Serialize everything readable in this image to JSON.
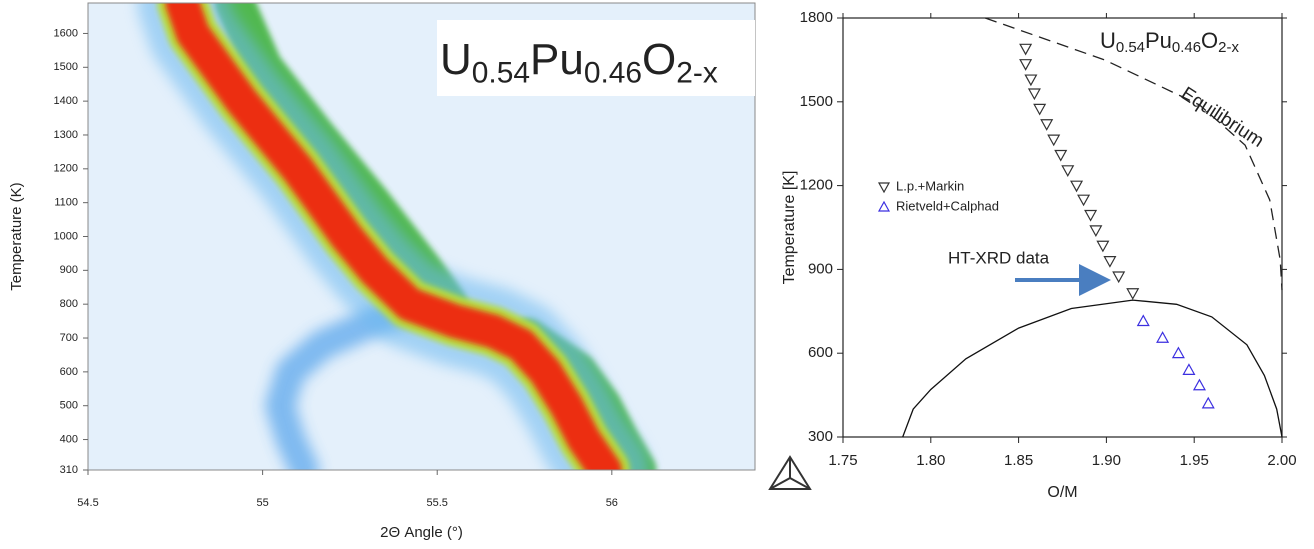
{
  "chart_data": [
    {
      "type": "heatmap",
      "title": [
        "U",
        "0.54",
        "Pu",
        "0.46",
        "O",
        "2-x"
      ],
      "xlabel": "2Θ Angle (°)",
      "ylabel": "Temperature (K)",
      "xlim": [
        54.5,
        56.41
      ],
      "ylim": [
        310,
        1690
      ],
      "xticks": [
        54.5,
        55,
        55.5,
        56
      ],
      "yticks": [
        310,
        400,
        500,
        600,
        700,
        800,
        900,
        1000,
        1100,
        1200,
        1300,
        1400,
        1500,
        1600
      ],
      "background": "#e4f0fb",
      "glow_colors": [
        "#6db9f0",
        "#b9dc3c"
      ],
      "series": [
        {
          "color": "#3a95e8",
          "x": [
            55.45,
            55.3,
            55.17,
            55.08,
            55.05,
            55.08,
            55.12
          ],
          "values": [
            800,
            740,
            680,
            600,
            500,
            400,
            310
          ]
        },
        {
          "color": "#43b33c",
          "x": [
            54.92,
            55.0,
            55.15,
            55.31,
            55.46,
            55.53,
            null,
            55.76,
            55.9,
            55.97,
            56.02,
            56.07
          ],
          "values": [
            1690,
            1500,
            1300,
            1100,
            900,
            800,
            null,
            700,
            600,
            500,
            400,
            310
          ]
        },
        {
          "color": "#f21d0c",
          "x": [
            54.77,
            54.8,
            54.87,
            54.94,
            55.02,
            55.1,
            55.17,
            55.24,
            55.32,
            55.42,
            55.55,
            55.66,
            55.74,
            55.81,
            55.87,
            55.92,
            55.98
          ],
          "values": [
            1690,
            1600,
            1500,
            1400,
            1300,
            1200,
            1100,
            1000,
            900,
            800,
            750,
            720,
            680,
            600,
            500,
            400,
            310
          ]
        }
      ]
    },
    {
      "type": "scatter",
      "title": [
        "U",
        "0.54",
        "Pu",
        "0.46",
        "O",
        "2-x"
      ],
      "xlabel": "O/M",
      "ylabel": "Temperature [K]",
      "xlim": [
        1.75,
        2.0
      ],
      "ylim": [
        300,
        1800
      ],
      "xticks": [
        1.75,
        {
          "value": 1.8,
          "label": "1.80"
        },
        1.85,
        {
          "value": 1.9,
          "label": "1.90"
        },
        1.95,
        {
          "value": 2,
          "label": "2.00"
        }
      ],
      "yticks": [
        300,
        600,
        900,
        1200,
        1500,
        1800
      ],
      "annotation": "HT-XRD data",
      "series": [
        {
          "name": "L.p.+Markin",
          "color": "#333333",
          "marker": "triangle-down",
          "x": [
            1.854,
            1.854,
            1.857,
            1.859,
            1.862,
            1.866,
            1.87,
            1.874,
            1.878,
            1.883,
            1.887,
            1.891,
            1.894,
            1.898,
            1.902,
            1.907,
            1.915
          ],
          "values": [
            1690,
            1635,
            1580,
            1530,
            1475,
            1420,
            1365,
            1310,
            1255,
            1200,
            1150,
            1095,
            1040,
            985,
            930,
            875,
            815
          ]
        },
        {
          "name": "Rietveld+Calphad",
          "color": "#3b2fe0",
          "marker": "triangle-up",
          "x": [
            1.921,
            1.932,
            1.941,
            1.947,
            1.953,
            1.958
          ],
          "values": [
            715,
            655,
            600,
            540,
            485,
            420
          ]
        }
      ],
      "lines": [
        {
          "style": "solid",
          "color": "#111111",
          "x": [
            1.784,
            1.79,
            1.8,
            1.82,
            1.85,
            1.88,
            1.915,
            1.94,
            1.96,
            1.98,
            1.99,
            1.997,
            2.0
          ],
          "values": [
            300,
            400,
            470,
            580,
            690,
            760,
            790,
            775,
            730,
            630,
            520,
            400,
            300
          ]
        },
        {
          "style": "dashed",
          "color": "#222222",
          "label": "Equilibrium",
          "x": [
            1.831,
            1.899,
            1.953,
            1.979,
            1.993,
            1.999,
            2.0
          ],
          "values": [
            1800,
            1650,
            1489,
            1345,
            1149,
            934,
            826
          ]
        }
      ]
    }
  ]
}
